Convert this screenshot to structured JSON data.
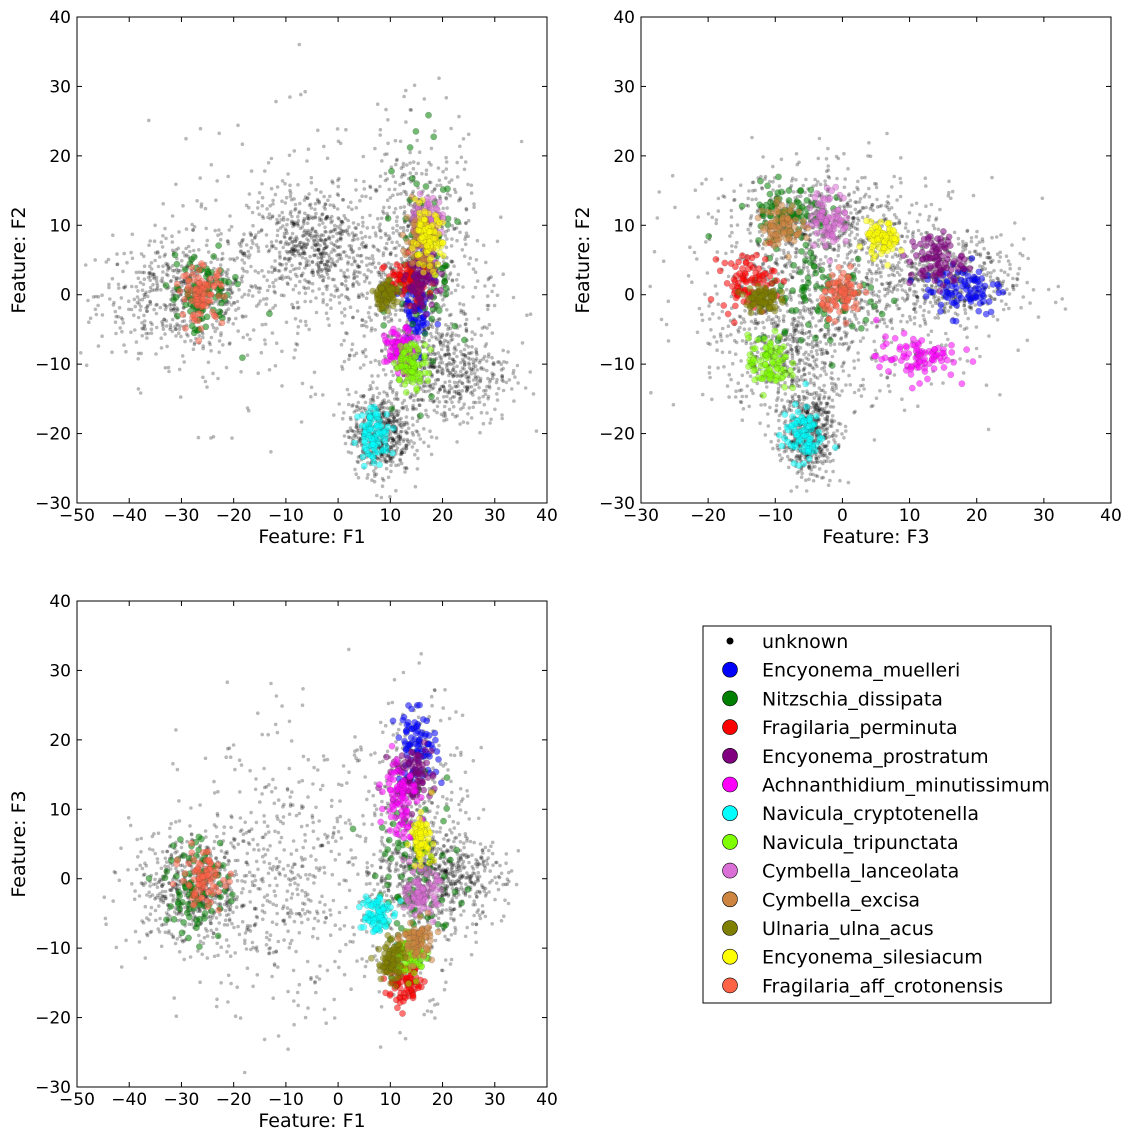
{
  "chart_data": [
    {
      "type": "scatter",
      "title": "",
      "xlabel": "Feature: F1",
      "ylabel": "Feature: F2",
      "xlim": [
        -50,
        40
      ],
      "ylim": [
        -30,
        40
      ],
      "xticks": [
        "−50",
        "−40",
        "−30",
        "−20",
        "−10",
        "0",
        "10",
        "20",
        "30",
        "40"
      ],
      "yticks": [
        "−30",
        "−20",
        "−10",
        "0",
        "10",
        "20",
        "30",
        "40"
      ],
      "grid": false,
      "background_blobs": [
        [
          -30,
          0,
          8,
          4
        ],
        [
          -5,
          7,
          6,
          4
        ],
        [
          15,
          5,
          5,
          9
        ],
        [
          21,
          -11,
          6,
          4
        ],
        [
          8,
          -20,
          3,
          3
        ],
        [
          0,
          3,
          18,
          10
        ]
      ],
      "species_blobs": [
        {
          "species": 1,
          "x": 15,
          "y": -2,
          "sx": 1.5,
          "sy": 3
        },
        {
          "species": 2,
          "x": -26,
          "y": 0,
          "sx": 3,
          "sy": 3
        },
        {
          "species": 2,
          "x": 17,
          "y": 5,
          "sx": 3,
          "sy": 8
        },
        {
          "species": 3,
          "x": 13,
          "y": 2,
          "sx": 2,
          "sy": 1.5
        },
        {
          "species": 4,
          "x": 16,
          "y": 2,
          "sx": 1.5,
          "sy": 2
        },
        {
          "species": 5,
          "x": 12,
          "y": -8,
          "sx": 1.5,
          "sy": 1.5
        },
        {
          "species": 6,
          "x": 7,
          "y": -20,
          "sx": 1.5,
          "sy": 2
        },
        {
          "species": 7,
          "x": 14,
          "y": -10,
          "sx": 1.5,
          "sy": 1.5
        },
        {
          "species": 8,
          "x": 17,
          "y": 11,
          "sx": 1.5,
          "sy": 1.5
        },
        {
          "species": 9,
          "x": 16,
          "y": 8,
          "sx": 1.5,
          "sy": 2
        },
        {
          "species": 10,
          "x": 9,
          "y": 0,
          "sx": 1.2,
          "sy": 1
        },
        {
          "species": 11,
          "x": 17,
          "y": 8,
          "sx": 1.5,
          "sy": 2
        },
        {
          "species": 12,
          "x": -26,
          "y": 0,
          "sx": 2,
          "sy": 2
        }
      ]
    },
    {
      "type": "scatter",
      "title": "",
      "xlabel": "Feature: F3",
      "ylabel": "Feature: F2",
      "xlim": [
        -30,
        40
      ],
      "ylim": [
        -30,
        40
      ],
      "xticks": [
        "−30",
        "−20",
        "−10",
        "0",
        "10",
        "20",
        "30",
        "40"
      ],
      "yticks": [
        "−30",
        "−20",
        "−10",
        "0",
        "10",
        "20",
        "30",
        "40"
      ],
      "grid": false,
      "background_blobs": [
        [
          0,
          0,
          12,
          8
        ],
        [
          -3,
          10,
          8,
          4
        ],
        [
          -8,
          -8,
          5,
          5
        ],
        [
          -5,
          -20,
          2,
          3
        ],
        [
          15,
          2,
          6,
          3
        ]
      ],
      "species_blobs": [
        {
          "species": 1,
          "x": 18,
          "y": 1,
          "sx": 3,
          "sy": 2
        },
        {
          "species": 2,
          "x": -3,
          "y": 0,
          "sx": 5,
          "sy": 4
        },
        {
          "species": 2,
          "x": -8,
          "y": 12,
          "sx": 3,
          "sy": 2
        },
        {
          "species": 3,
          "x": -14,
          "y": 2,
          "sx": 2,
          "sy": 2
        },
        {
          "species": 4,
          "x": 14,
          "y": 5,
          "sx": 2,
          "sy": 2
        },
        {
          "species": 5,
          "x": 11,
          "y": -9,
          "sx": 3,
          "sy": 1.5
        },
        {
          "species": 6,
          "x": -6,
          "y": -20,
          "sx": 1.5,
          "sy": 2
        },
        {
          "species": 7,
          "x": -11,
          "y": -10,
          "sx": 1.5,
          "sy": 2
        },
        {
          "species": 8,
          "x": -2,
          "y": 11,
          "sx": 1.5,
          "sy": 2
        },
        {
          "species": 9,
          "x": -9,
          "y": 10,
          "sx": 1.5,
          "sy": 1.5
        },
        {
          "species": 10,
          "x": -12,
          "y": -0.5,
          "sx": 1.2,
          "sy": 1
        },
        {
          "species": 11,
          "x": 6,
          "y": 8,
          "sx": 1.2,
          "sy": 1.2
        },
        {
          "species": 12,
          "x": 0,
          "y": 0,
          "sx": 1.5,
          "sy": 1.5
        }
      ]
    },
    {
      "type": "scatter",
      "title": "",
      "xlabel": "Feature: F1",
      "ylabel": "Feature: F3",
      "xlim": [
        -50,
        40
      ],
      "ylim": [
        -30,
        40
      ],
      "xticks": [
        "−50",
        "−40",
        "−30",
        "−20",
        "−10",
        "0",
        "10",
        "20",
        "30",
        "40"
      ],
      "yticks": [
        "−30",
        "−20",
        "−10",
        "0",
        "10",
        "20",
        "30",
        "40"
      ],
      "grid": false,
      "background_blobs": [
        [
          -28,
          -2,
          6,
          4
        ],
        [
          15,
          5,
          5,
          10
        ],
        [
          20,
          0,
          6,
          3
        ],
        [
          -10,
          0,
          10,
          10
        ]
      ],
      "species_blobs": [
        {
          "species": 1,
          "x": 15,
          "y": 19,
          "sx": 2,
          "sy": 2.5
        },
        {
          "species": 2,
          "x": -27,
          "y": -1,
          "sx": 3,
          "sy": 4
        },
        {
          "species": 2,
          "x": 15,
          "y": 0,
          "sx": 4,
          "sy": 6
        },
        {
          "species": 3,
          "x": 13,
          "y": -15,
          "sx": 2,
          "sy": 1.5
        },
        {
          "species": 4,
          "x": 14,
          "y": 15,
          "sx": 2,
          "sy": 2
        },
        {
          "species": 5,
          "x": 12,
          "y": 12,
          "sx": 1.5,
          "sy": 3
        },
        {
          "species": 6,
          "x": 7,
          "y": -5,
          "sx": 1.5,
          "sy": 1.5
        },
        {
          "species": 7,
          "x": 14,
          "y": -11,
          "sx": 1.5,
          "sy": 1.5
        },
        {
          "species": 8,
          "x": 16,
          "y": -2,
          "sx": 1.5,
          "sy": 1.5
        },
        {
          "species": 9,
          "x": 15,
          "y": -9,
          "sx": 1.5,
          "sy": 1.5
        },
        {
          "species": 10,
          "x": 10,
          "y": -12,
          "sx": 1.2,
          "sy": 1.5
        },
        {
          "species": 11,
          "x": 16,
          "y": 6,
          "sx": 1,
          "sy": 1.5
        },
        {
          "species": 12,
          "x": -26,
          "y": 0,
          "sx": 2,
          "sy": 2
        }
      ]
    }
  ],
  "legend": {
    "placement": "bottom-right",
    "entries": [
      {
        "label": "unknown",
        "color": "#000000"
      },
      {
        "label": "Encyonema_muelleri",
        "color": "#0000ff"
      },
      {
        "label": "Nitzschia_dissipata",
        "color": "#008000"
      },
      {
        "label": "Fragilaria_perminuta",
        "color": "#ff0000"
      },
      {
        "label": "Encyonema_prostratum",
        "color": "#800080"
      },
      {
        "label": "Achnanthidium_minutissimum",
        "color": "#ff00ff"
      },
      {
        "label": "Navicula_cryptotenella",
        "color": "#00ffff"
      },
      {
        "label": "Navicula_tripunctata",
        "color": "#7fff00"
      },
      {
        "label": "Cymbella_lanceolata",
        "color": "#da70d6"
      },
      {
        "label": "Cymbella_excisa",
        "color": "#cd853f"
      },
      {
        "label": "Ulnaria_ulna_acus",
        "color": "#808000"
      },
      {
        "label": "Encyonema_silesiacum",
        "color": "#ffff00"
      },
      {
        "label": "Fragilaria_aff_crotonensis",
        "color": "#ff6347"
      }
    ]
  }
}
